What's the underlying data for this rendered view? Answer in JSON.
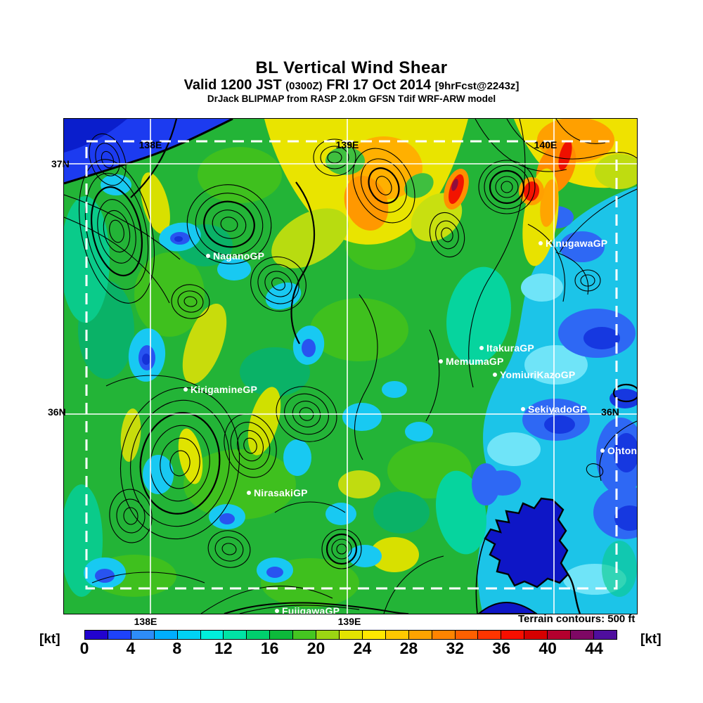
{
  "header": {
    "title": "BL Vertical Wind Shear",
    "valid_prefix": "Valid 1200 JST ",
    "valid_zulu": "(0300Z)",
    "valid_date": " FRI 17 Oct 2014 ",
    "valid_fcst": "[9hrFcst@2243z]",
    "model_line": "DrJack BLIPMAP from RASP 2.0km GFSN Tdif WRF-ARW model"
  },
  "map": {
    "grid_labels": {
      "lat_37n_left": "37N",
      "lat_36n_left": "36N",
      "lat_36n_right": "36N",
      "lon_138e_top": "138E",
      "lon_139e_top": "139E",
      "lon_140e_top": "140E",
      "lon_138e_bottom": "138E",
      "lon_139e_bottom": "139E"
    },
    "sites": [
      {
        "name": "NaganoGP"
      },
      {
        "name": "KinugawaGP"
      },
      {
        "name": "ItakuraGP"
      },
      {
        "name": "MemumaGP"
      },
      {
        "name": "YomiuriKazoGP"
      },
      {
        "name": "SekiyadoGP"
      },
      {
        "name": "KirigamineGP"
      },
      {
        "name": "NirasakiGP"
      },
      {
        "name": "FujigawaGP"
      },
      {
        "name": "OhtoneGP"
      }
    ]
  },
  "footer": {
    "terrain_note": "Terrain contours: 500 ft",
    "unit_left": "[kt]",
    "unit_right": "[kt]"
  },
  "colorbar": {
    "units": "kt",
    "min": 0,
    "max": 46,
    "segment_step_kt": 2,
    "ticks": [
      "0",
      "4",
      "8",
      "12",
      "16",
      "20",
      "24",
      "28",
      "32",
      "36",
      "40",
      "44"
    ],
    "colors": [
      "#2202CF",
      "#1E42FB",
      "#2E8CF8",
      "#00AEFF",
      "#00D2F5",
      "#00EEDC",
      "#00E3A5",
      "#00CF6E",
      "#0DB93B",
      "#45C621",
      "#9BD513",
      "#E4E400",
      "#FFE800",
      "#FFC800",
      "#FFA300",
      "#FF8400",
      "#FF6000",
      "#FF3500",
      "#F70F00",
      "#D60000",
      "#B4002E",
      "#7E0864",
      "#4F0E9E"
    ]
  }
}
